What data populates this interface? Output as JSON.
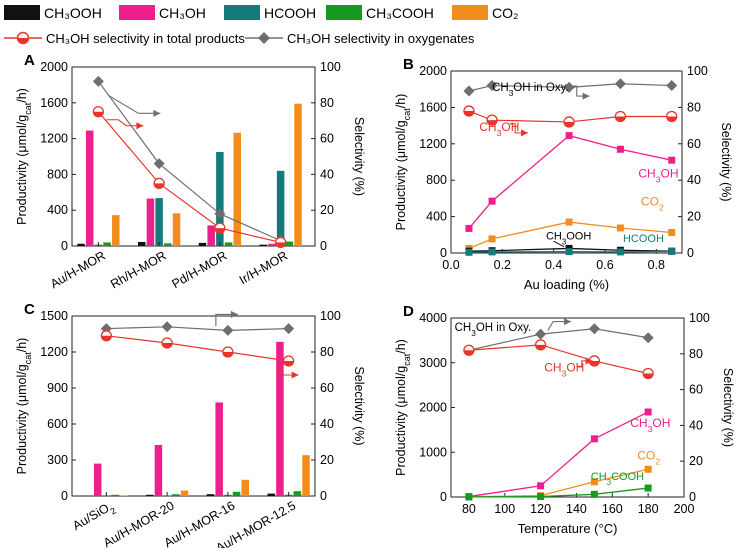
{
  "legend": {
    "bars": [
      {
        "label": "CH₃OOH",
        "color": "#111111"
      },
      {
        "label": "CH₃OH",
        "color": "#ee1e8c"
      },
      {
        "label": "HCOOH",
        "color": "#137c7a"
      },
      {
        "label": "CH₃COOH",
        "color": "#169a20"
      },
      {
        "label": "CO₂",
        "color": "#f28c1c"
      }
    ],
    "lines": [
      {
        "label": "CH₃OH selectivity in total products",
        "color": "#e8352b",
        "marker": "half-circle"
      },
      {
        "label": "CH₃OH selectivity in oxygenates",
        "color": "#6e6e6e",
        "marker": "diamond"
      }
    ]
  },
  "colors": {
    "CH3OOH": "#111111",
    "CH3OH": "#ee1e8c",
    "HCOOH": "#137c7a",
    "CH3COOH": "#169a20",
    "CO2": "#f28c1c",
    "sel_total": "#e8352b",
    "sel_oxy": "#6e6e6e",
    "axis": "#222222"
  },
  "chart_data": [
    {
      "panel": "A",
      "type": "bar",
      "xlabel": "",
      "ylabel": "Productivity (μmol/g_cat/h)",
      "y2label": "Selectivity (%)",
      "ylim": [
        0,
        2000
      ],
      "yticks": [
        0,
        400,
        800,
        1200,
        1600,
        2000
      ],
      "y2lim": [
        0,
        100
      ],
      "y2ticks": [
        0,
        20,
        40,
        60,
        80,
        100
      ],
      "categories": [
        "Au/H-MOR",
        "Rh/H-MOR",
        "Pd/H-MOR",
        "Ir/H-MOR"
      ],
      "series": [
        {
          "name": "CH3OOH",
          "values": [
            25,
            45,
            35,
            15
          ]
        },
        {
          "name": "CH3OH",
          "values": [
            1290,
            530,
            230,
            25
          ]
        },
        {
          "name": "HCOOH",
          "values": [
            15,
            535,
            1050,
            840
          ]
        },
        {
          "name": "CH3COOH",
          "values": [
            40,
            30,
            40,
            50
          ]
        },
        {
          "name": "CO2",
          "values": [
            345,
            365,
            1265,
            1590
          ]
        }
      ],
      "lines": [
        {
          "name": "sel_total",
          "values": [
            75,
            35,
            10,
            2
          ]
        },
        {
          "name": "sel_oxy",
          "values": [
            92,
            46,
            18,
            3
          ]
        }
      ],
      "annotations": [
        {
          "text": "",
          "type": "arrows"
        }
      ]
    },
    {
      "panel": "B",
      "type": "line",
      "xlabel": "Au loading (%)",
      "ylabel": "Productivity (μmol/g_cat/h)",
      "y2label": "Selectivity (%)",
      "xlim": [
        0,
        0.9
      ],
      "xticks": [
        0.0,
        0.2,
        0.4,
        0.6,
        0.8
      ],
      "xticklabels": [
        "0.0",
        "0.2",
        "0.4",
        "0.6",
        "0.8"
      ],
      "ylim": [
        0,
        2000
      ],
      "yticks": [
        0,
        400,
        800,
        1200,
        1600,
        2000
      ],
      "y2lim": [
        0,
        100
      ],
      "y2ticks": [
        0,
        20,
        40,
        60,
        80,
        100
      ],
      "x": [
        0.07,
        0.16,
        0.46,
        0.66,
        0.86
      ],
      "series": [
        {
          "name": "CH3OH",
          "values": [
            270,
            570,
            1290,
            1140,
            1020
          ]
        },
        {
          "name": "CO2",
          "values": [
            50,
            155,
            340,
            275,
            225
          ]
        },
        {
          "name": "CH3OOH",
          "values": [
            20,
            25,
            50,
            30,
            20
          ]
        },
        {
          "name": "HCOOH",
          "values": [
            8,
            12,
            15,
            12,
            18
          ]
        }
      ],
      "lines": [
        {
          "name": "sel_total",
          "values": [
            78,
            73,
            72,
            75,
            75
          ]
        },
        {
          "name": "sel_oxy",
          "values": [
            89,
            92,
            91,
            93,
            92
          ]
        }
      ],
      "labels": {
        "oxy": "CH₃OH in Oxy.",
        "total": "CH₃OH",
        "ch3oh": "CH₃OH",
        "co2": "CO₂",
        "ch3ooh": "CH₃OOH",
        "hcooh": "HCOOH"
      }
    },
    {
      "panel": "C",
      "type": "bar",
      "xlabel": "",
      "ylabel": "Productivity (μmol/g_cat/h)",
      "y2label": "Selectivity (%)",
      "ylim": [
        0,
        1500
      ],
      "yticks": [
        0,
        300,
        600,
        900,
        1200,
        1500
      ],
      "y2lim": [
        0,
        100
      ],
      "y2ticks": [
        0,
        20,
        40,
        60,
        80,
        100
      ],
      "categories": [
        "Au/SiO₂",
        "Au/H-MOR-20",
        "Au/H-MOR-16",
        "Au/H-MOR-12.5"
      ],
      "series": [
        {
          "name": "CH3OOH",
          "values": [
            0,
            10,
            15,
            20
          ]
        },
        {
          "name": "CH3OH",
          "values": [
            270,
            425,
            780,
            1285
          ]
        },
        {
          "name": "HCOOH",
          "values": [
            5,
            5,
            10,
            10
          ]
        },
        {
          "name": "CH3COOH",
          "values": [
            10,
            15,
            35,
            40
          ]
        },
        {
          "name": "CO2",
          "values": [
            5,
            45,
            135,
            340
          ]
        }
      ],
      "lines": [
        {
          "name": "sel_total",
          "values": [
            89,
            85,
            80,
            75
          ]
        },
        {
          "name": "sel_oxy",
          "values": [
            93,
            94,
            92,
            93
          ]
        }
      ]
    },
    {
      "panel": "D",
      "type": "line",
      "xlabel": "Temperature (°C)",
      "ylabel": "Productivity (μmol/g_cat/h)",
      "y2label": "Selectivity (%)",
      "xlim": [
        70,
        200
      ],
      "xticks": [
        80,
        100,
        120,
        140,
        160,
        180,
        200
      ],
      "xticklabels": [
        "80",
        "100",
        "120",
        "140",
        "160",
        "180",
        "200"
      ],
      "ylim": [
        0,
        4000
      ],
      "yticks": [
        0,
        1000,
        2000,
        3000,
        4000
      ],
      "y2lim": [
        0,
        100
      ],
      "y2ticks": [
        0,
        20,
        40,
        60,
        80,
        100
      ],
      "x": [
        80,
        120,
        150,
        180
      ],
      "series": [
        {
          "name": "CH3OH",
          "values": [
            10,
            250,
            1300,
            1900
          ]
        },
        {
          "name": "CO2",
          "values": [
            5,
            30,
            340,
            620
          ]
        },
        {
          "name": "CH3COOH",
          "values": [
            2,
            10,
            60,
            200
          ]
        }
      ],
      "lines": [
        {
          "name": "sel_total",
          "values": [
            82,
            85,
            76,
            69
          ]
        },
        {
          "name": "sel_oxy",
          "values": [
            82,
            91,
            94,
            89
          ]
        }
      ],
      "labels": {
        "oxy": "CH₃OH in Oxy.",
        "total": "CH₃OH",
        "ch3oh": "CH₃OH",
        "co2": "CO₂",
        "ch3cooh": "CH₃COOH"
      }
    }
  ]
}
